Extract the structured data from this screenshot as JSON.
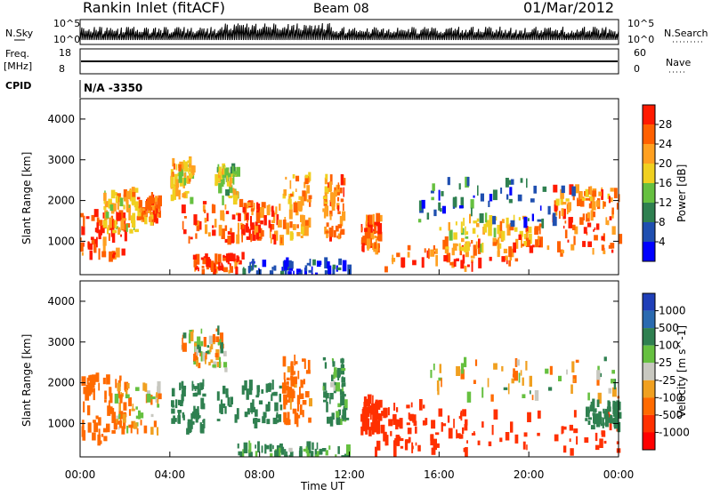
{
  "header": {
    "station": "Rankin Inlet (fitACF)",
    "beam": "Beam 08",
    "date": "01/Mar/2012"
  },
  "top_panels": {
    "nsky_label": "N.Sky",
    "nsearch_label": "N.Search",
    "sky_ticks": [
      "10^5",
      "10^0"
    ],
    "search_ticks": [
      "10^5",
      "10^0"
    ],
    "freq_label": "Freq.",
    "freq_unit": "[MHz]",
    "freq_ticks": [
      "18",
      "8"
    ],
    "nave_label": "Nave",
    "nave_ticks": [
      "60",
      "0"
    ],
    "cpid_label": "CPID",
    "cpid_value": "N/A  -3350"
  },
  "power_panel": {
    "ylabel": "Slant Range [km]",
    "yticks": [
      "4000",
      "3000",
      "2000",
      "1000"
    ],
    "colorbar_label": "Power [dB]",
    "colorbar_ticks": [
      "28",
      "24",
      "20",
      "16",
      "12",
      "8",
      "4"
    ],
    "colors": [
      "#0000ff",
      "#1f4fb0",
      "#2f8050",
      "#66c040",
      "#f0d020",
      "#ffa020",
      "#ff6000",
      "#ff1a00"
    ]
  },
  "velocity_panel": {
    "ylabel": "Slant Range [km]",
    "yticks": [
      "4000",
      "3000",
      "2000",
      "1000"
    ],
    "colorbar_label": "Velocity [m s^-1]",
    "colorbar_ticks": [
      "1000",
      "500",
      "100",
      "25",
      "-25",
      "-100",
      "-500",
      "-1000"
    ],
    "colors": [
      "#1f3fb8",
      "#2a6ab0",
      "#2f8050",
      "#66c040",
      "#c8c8c0",
      "#f0a020",
      "#ff6a00",
      "#ff3000",
      "#ff0000"
    ]
  },
  "x_axis": {
    "ticks": [
      "00:00",
      "04:00",
      "08:00",
      "12:00",
      "16:00",
      "20:00",
      "00:00"
    ],
    "label": "Time UT"
  },
  "chart_data": {
    "type": "heatmap",
    "x_range_hours": [
      0,
      24
    ],
    "y_range_km": [
      180,
      4500
    ],
    "power_blobs": [
      {
        "t0": 0.0,
        "t1": 2.0,
        "r0": 600,
        "r1": 1700,
        "v": 28
      },
      {
        "t0": 1.0,
        "t1": 2.5,
        "r0": 1200,
        "r1": 2300,
        "v": 20
      },
      {
        "t0": 2.5,
        "t1": 3.5,
        "r0": 1500,
        "r1": 2100,
        "v": 24
      },
      {
        "t0": 4.0,
        "t1": 5.0,
        "r0": 2000,
        "r1": 3000,
        "v": 20
      },
      {
        "t0": 4.5,
        "t1": 8.0,
        "r0": 1000,
        "r1": 2000,
        "v": 26
      },
      {
        "t0": 6.0,
        "t1": 7.0,
        "r0": 2000,
        "r1": 2800,
        "v": 16
      },
      {
        "t0": 7.0,
        "t1": 9.0,
        "r0": 1000,
        "r1": 2000,
        "v": 26
      },
      {
        "t0": 9.0,
        "t1": 10.2,
        "r0": 1000,
        "r1": 2600,
        "v": 22
      },
      {
        "t0": 10.8,
        "t1": 11.8,
        "r0": 1100,
        "r1": 2600,
        "v": 24
      },
      {
        "t0": 12.5,
        "t1": 13.3,
        "r0": 800,
        "r1": 1600,
        "v": 26
      },
      {
        "t0": 5.0,
        "t1": 7.2,
        "r0": 250,
        "r1": 650,
        "v": 28
      },
      {
        "t0": 13.5,
        "t1": 19.5,
        "r0": 300,
        "r1": 1000,
        "v": 26
      },
      {
        "t0": 16.0,
        "t1": 20.0,
        "r0": 800,
        "r1": 1600,
        "v": 20
      },
      {
        "t0": 19.0,
        "t1": 24.0,
        "r0": 700,
        "r1": 1600,
        "v": 26
      },
      {
        "t0": 21.0,
        "t1": 24.0,
        "r0": 1600,
        "r1": 2300,
        "v": 24
      },
      {
        "t0": 15.0,
        "t1": 22.0,
        "r0": 1400,
        "r1": 2500,
        "v": 8
      },
      {
        "t0": 7.0,
        "t1": 12.0,
        "r0": 150,
        "r1": 500,
        "v": 6
      }
    ],
    "velocity_blobs": [
      {
        "t0": 0.0,
        "t1": 2.0,
        "r0": 500,
        "r1": 2200,
        "v": -200
      },
      {
        "t0": 1.5,
        "t1": 3.5,
        "r0": 800,
        "r1": 2000,
        "v": -50
      },
      {
        "t0": 4.0,
        "t1": 5.5,
        "r0": 800,
        "r1": 2000,
        "v": 200
      },
      {
        "t0": 4.5,
        "t1": 6.5,
        "r0": 2300,
        "r1": 3300,
        "v": 0
      },
      {
        "t0": 6.0,
        "t1": 9.0,
        "r0": 1000,
        "r1": 2000,
        "v": 200
      },
      {
        "t0": 9.0,
        "t1": 10.2,
        "r0": 1000,
        "r1": 2600,
        "v": -150
      },
      {
        "t0": 10.8,
        "t1": 11.8,
        "r0": 1000,
        "r1": 2600,
        "v": 100
      },
      {
        "t0": 12.5,
        "t1": 13.3,
        "r0": 800,
        "r1": 1600,
        "v": -600
      },
      {
        "t0": 13.0,
        "t1": 16.0,
        "r0": 300,
        "r1": 1500,
        "v": -600
      },
      {
        "t0": 16.0,
        "t1": 24.0,
        "r0": 300,
        "r1": 1300,
        "v": -600
      },
      {
        "t0": 15.5,
        "t1": 24.0,
        "r0": 1600,
        "r1": 2600,
        "v": 0
      },
      {
        "t0": 22.5,
        "t1": 24.0,
        "r0": 900,
        "r1": 1500,
        "v": 200
      },
      {
        "t0": 7.0,
        "t1": 12.0,
        "r0": 150,
        "r1": 450,
        "v": 100
      }
    ],
    "ground_scatter_color": "#c8c8c0"
  }
}
